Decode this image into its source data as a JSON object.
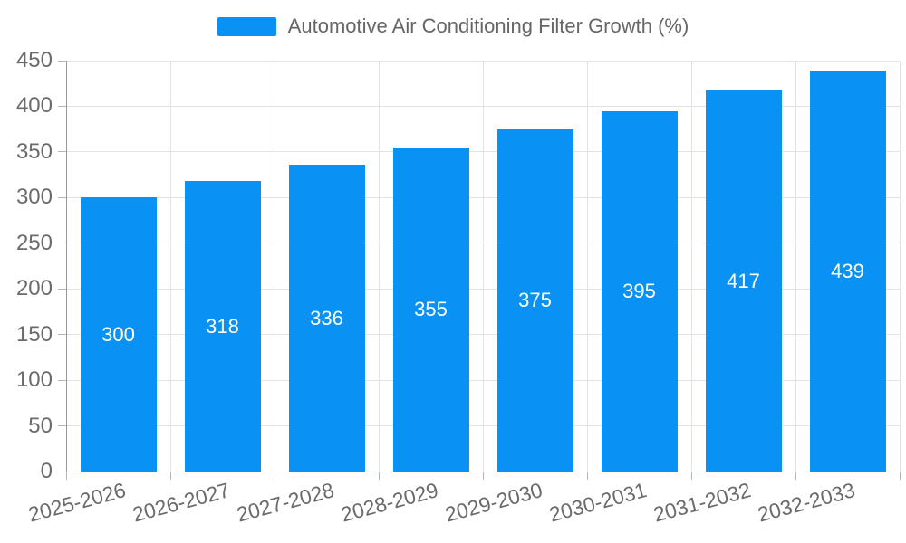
{
  "legend": {
    "label": "Automotive Air Conditioning Filter Growth (%)",
    "swatch_color": "#0991f4"
  },
  "chart_data": {
    "type": "bar",
    "title": "Automotive Air Conditioning Filter Growth (%)",
    "categories": [
      "2025-2026",
      "2026-2027",
      "2027-2028",
      "2028-2029",
      "2029-2030",
      "2030-2031",
      "2031-2032",
      "2032-2033"
    ],
    "values": [
      300,
      318,
      336,
      355,
      375,
      395,
      417,
      439
    ],
    "xlabel": "",
    "ylabel": "",
    "ylim": [
      0,
      450
    ],
    "y_ticks": [
      0,
      50,
      100,
      150,
      200,
      250,
      300,
      350,
      400,
      450
    ],
    "y_tick_labels": [
      "0",
      "50",
      "100",
      "150",
      "200",
      "250",
      "300",
      "350",
      "400",
      "450"
    ],
    "grid": true,
    "legend_position": "top-center",
    "x_label_rotation_deg": -15,
    "bar_color": "#0991f4",
    "value_label_color": "#ffffff",
    "value_labels_position": "inside-middle"
  }
}
